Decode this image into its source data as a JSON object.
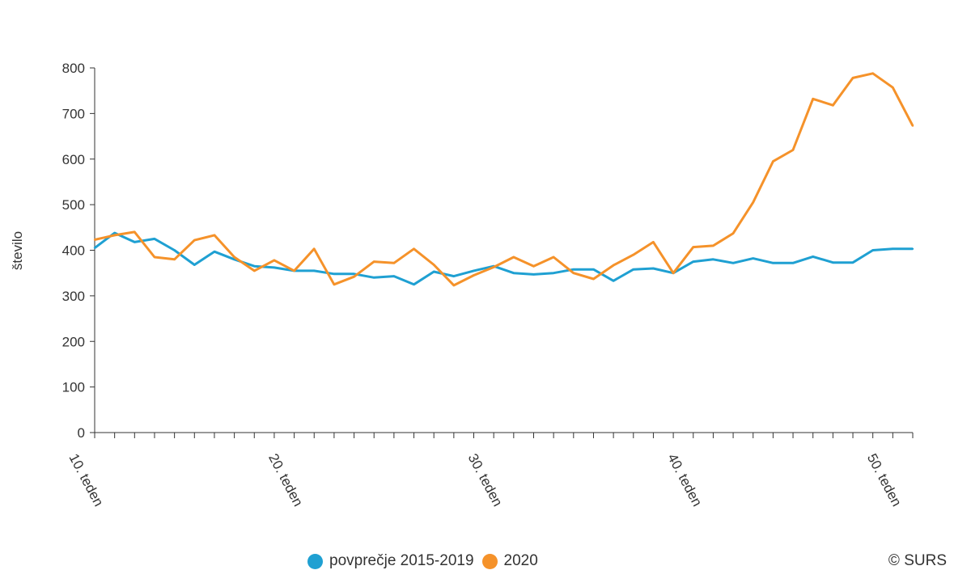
{
  "chart_data": {
    "type": "line",
    "title": "",
    "ylabel": "število",
    "xlabel": "",
    "ylim": [
      0,
      800
    ],
    "yticks": [
      "0",
      "100",
      "200",
      "300",
      "400",
      "500",
      "600",
      "700",
      "800"
    ],
    "week_start": 10,
    "week_end": 51,
    "xtick_labels": [
      {
        "week": 10,
        "label": "10. teden"
      },
      {
        "week": 20,
        "label": "20. teden"
      },
      {
        "week": 30,
        "label": "30. teden"
      },
      {
        "week": 40,
        "label": "40. teden"
      },
      {
        "week": 50,
        "label": "50. teden"
      }
    ],
    "grid": false,
    "legend_position": "bottom",
    "series": [
      {
        "name": "povprečje 2015-2019",
        "color": "#1fa0d2",
        "x": [
          10,
          11,
          12,
          13,
          14,
          15,
          16,
          17,
          18,
          19,
          20,
          21,
          22,
          23,
          24,
          25,
          26,
          27,
          28,
          29,
          30,
          31,
          32,
          33,
          34,
          35,
          36,
          37,
          38,
          39,
          40,
          41,
          42,
          43,
          44,
          45,
          46,
          47,
          48,
          49,
          50,
          51
        ],
        "values": [
          405,
          438,
          418,
          425,
          400,
          368,
          397,
          380,
          365,
          362,
          355,
          355,
          348,
          348,
          340,
          343,
          325,
          353,
          343,
          355,
          365,
          350,
          347,
          350,
          358,
          358,
          333,
          358,
          360,
          350,
          375,
          380,
          372,
          382,
          372,
          372,
          386,
          373,
          373,
          400,
          403,
          403
        ]
      },
      {
        "name": "2020",
        "color": "#f5922a",
        "x": [
          10,
          11,
          12,
          13,
          14,
          15,
          16,
          17,
          18,
          19,
          20,
          21,
          22,
          23,
          24,
          25,
          26,
          27,
          28,
          29,
          30,
          31,
          32,
          33,
          34,
          35,
          36,
          37,
          38,
          39,
          40,
          41,
          42,
          43,
          44,
          45,
          46,
          47,
          48,
          49,
          50,
          51
        ],
        "values": [
          423,
          433,
          440,
          385,
          380,
          422,
          433,
          385,
          355,
          378,
          355,
          403,
          325,
          342,
          375,
          372,
          403,
          368,
          323,
          345,
          363,
          385,
          365,
          385,
          350,
          337,
          367,
          390,
          418,
          350,
          407,
          410,
          437,
          505,
          595,
          620,
          732,
          718,
          778,
          788,
          757,
          673
        ]
      }
    ]
  },
  "credit": "© SURS"
}
